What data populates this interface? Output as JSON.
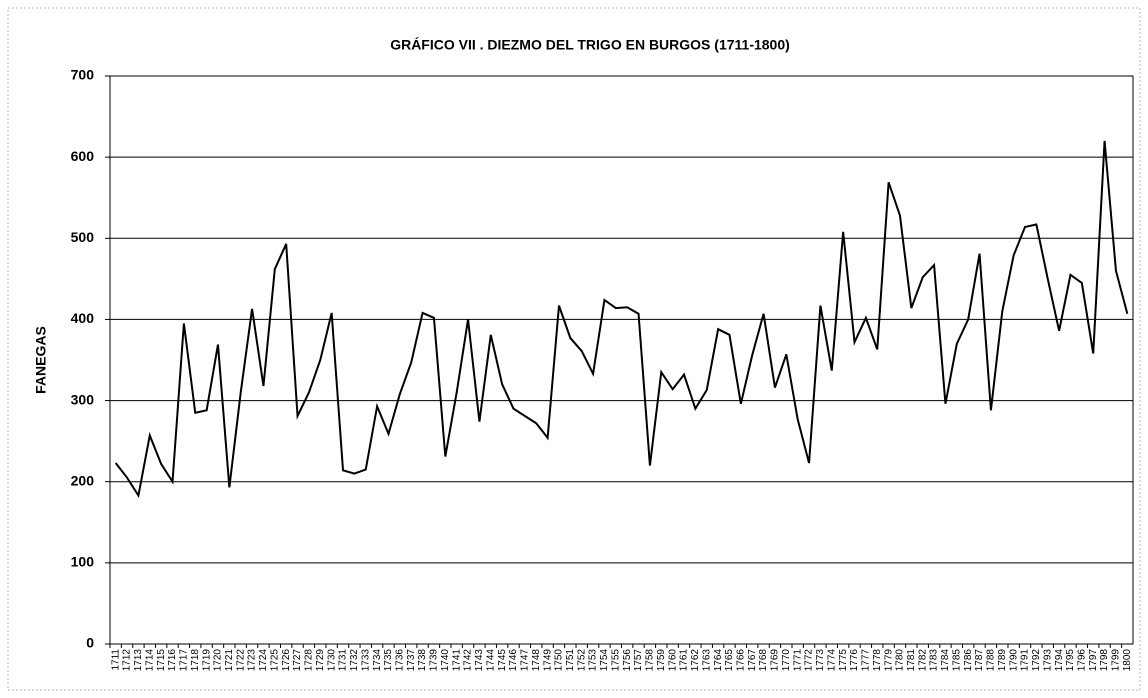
{
  "chart_data": {
    "type": "line",
    "title": "GRÁFICO VII . DIEZMO DEL TRIGO EN BURGOS (1711-1800)",
    "y_label": "FANEGAS",
    "categories": [
      "1711",
      "1712",
      "1713",
      "1714",
      "1715",
      "1716",
      "1717",
      "1718",
      "1719",
      "1720",
      "1721",
      "1722",
      "1723",
      "1724",
      "1725",
      "1726",
      "1727",
      "1728",
      "1729",
      "1730",
      "1731",
      "1732",
      "1733",
      "1734",
      "1735",
      "1736",
      "1737",
      "1738",
      "1739",
      "1740",
      "1741",
      "1742",
      "1743",
      "1744",
      "1745",
      "1746",
      "1747",
      "1748",
      "1749",
      "1750",
      "1751",
      "1752",
      "1753",
      "1754",
      "1755",
      "1756",
      "1757",
      "1758",
      "1759",
      "1760",
      "1761",
      "1762",
      "1763",
      "1764",
      "1765",
      "1766",
      "1767",
      "1768",
      "1769",
      "1770",
      "1771",
      "1772",
      "1773",
      "1774",
      "1775",
      "1776",
      "1777",
      "1778",
      "1779",
      "1780",
      "1781",
      "1782",
      "1783",
      "1784",
      "1785",
      "1786",
      "1787",
      "1788",
      "1789",
      "1790",
      "1791",
      "1792",
      "1793",
      "1794",
      "1795",
      "1796",
      "1797",
      "1798",
      "1799",
      "1800"
    ],
    "values": [
      223,
      205,
      183,
      257,
      222,
      200,
      395,
      285,
      288,
      369,
      193,
      310,
      413,
      318,
      462,
      493,
      281,
      310,
      350,
      408,
      214,
      210,
      215,
      293,
      259,
      308,
      347,
      408,
      402,
      231,
      310,
      400,
      274,
      381,
      320,
      290,
      281,
      272,
      254,
      417,
      377,
      361,
      333,
      424,
      414,
      415,
      407,
      220,
      335,
      314,
      332,
      290,
      313,
      388,
      381,
      296,
      356,
      407,
      316,
      357,
      277,
      223,
      417,
      337,
      508,
      372,
      402,
      363,
      569,
      528,
      414,
      452,
      467,
      296,
      370,
      400,
      481,
      288,
      410,
      479,
      514,
      517,
      450,
      386,
      455,
      445,
      358,
      620,
      460,
      407
    ],
    "color": "#000000",
    "ylim": [
      0,
      700
    ],
    "yticks": [
      0,
      100,
      200,
      300,
      400,
      500,
      600,
      700
    ],
    "grid": true
  }
}
